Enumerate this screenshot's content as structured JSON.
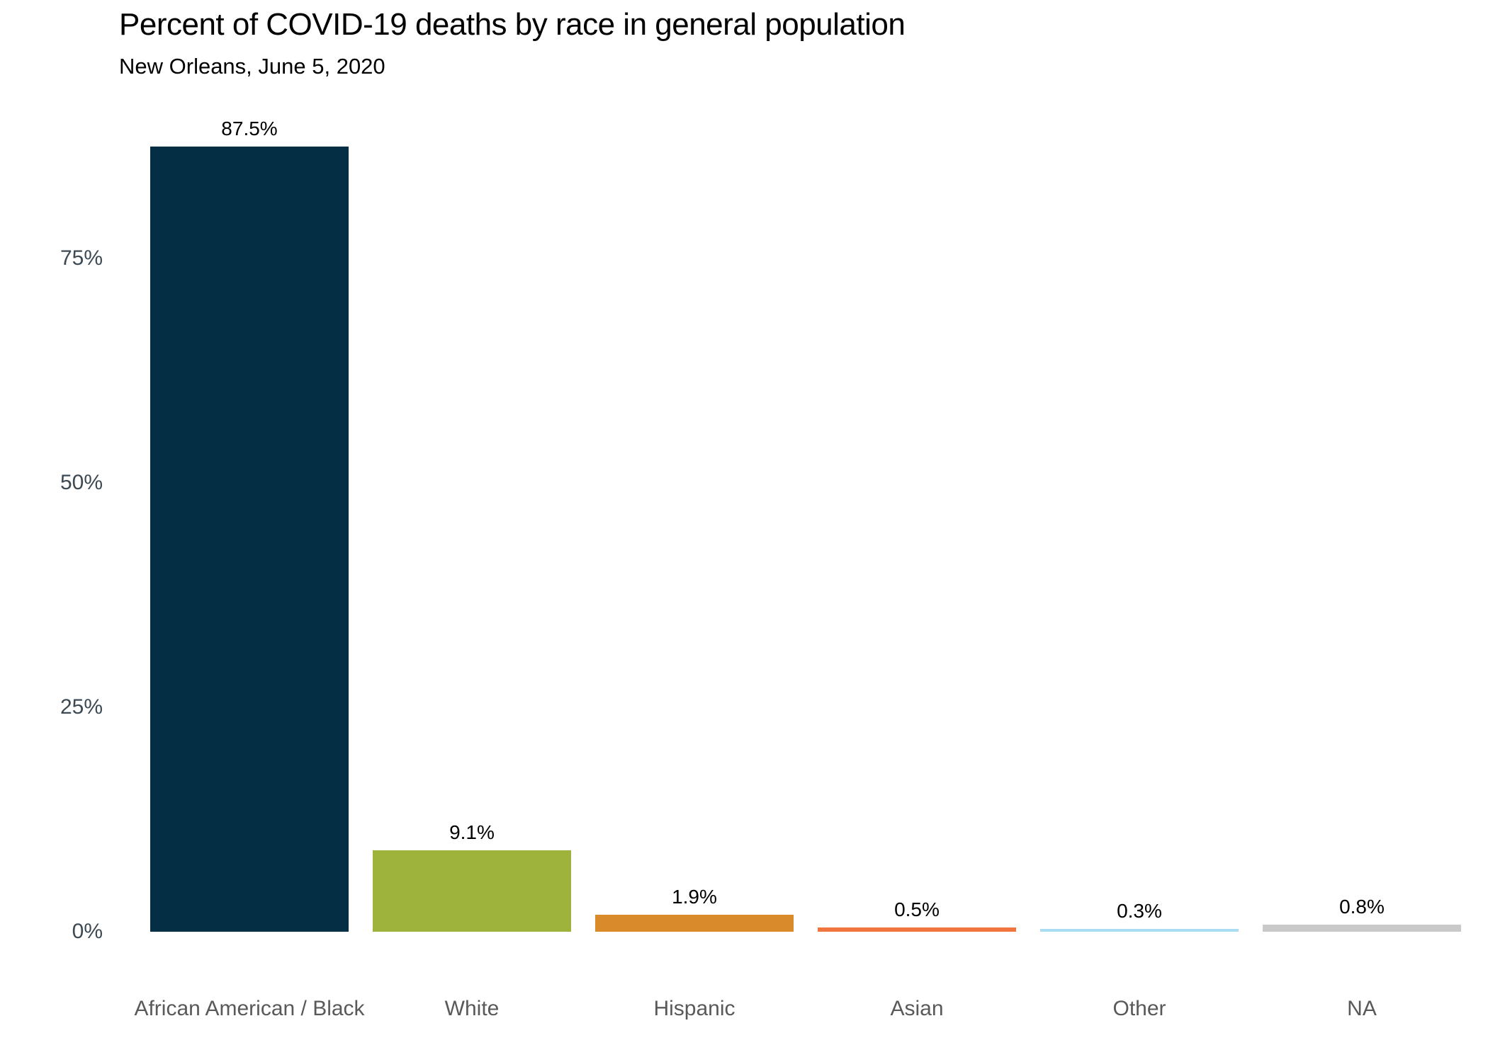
{
  "chart_data": {
    "type": "bar",
    "title": "Percent of COVID-19 deaths by race in general population",
    "subtitle": "New Orleans, June 5, 2020",
    "categories": [
      "African American / Black",
      "White",
      "Hispanic",
      "Asian",
      "Other",
      "NA"
    ],
    "values": [
      87.5,
      9.1,
      1.9,
      0.5,
      0.3,
      0.8
    ],
    "value_labels": [
      "87.5%",
      "9.1%",
      "1.9%",
      "0.5%",
      "0.3%",
      "0.8%"
    ],
    "bar_colors": [
      "#032e43",
      "#9db33c",
      "#d98b2b",
      "#f0753f",
      "#aaddf2",
      "#c9c9c9"
    ],
    "yticks": [
      {
        "value": 0,
        "label": "0%"
      },
      {
        "value": 25,
        "label": "25%"
      },
      {
        "value": 50,
        "label": "50%"
      },
      {
        "value": 75,
        "label": "75%"
      }
    ],
    "ylim": [
      0,
      87.5
    ],
    "xlabel": "",
    "ylabel": "",
    "grid": false,
    "legend": false,
    "colors": {
      "tick_label": "#3d4a54",
      "category_label": "#595959",
      "value_label": "#000000",
      "title": "#000000"
    }
  }
}
